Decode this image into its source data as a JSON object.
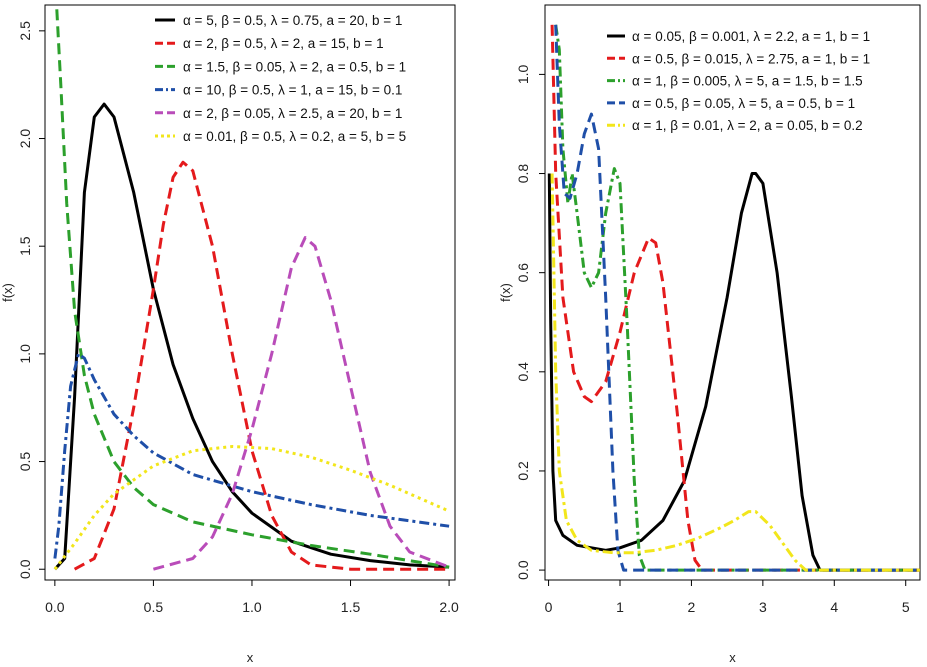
{
  "chart_data": [
    {
      "type": "line",
      "title": "",
      "xlabel": "x",
      "ylabel": "f(x)",
      "xlim": [
        -0.05,
        2.03
      ],
      "ylim": [
        -0.05,
        2.62
      ],
      "x_ticks": [
        0.0,
        0.5,
        1.0,
        1.5,
        2.0
      ],
      "x_tick_labels": [
        "0.0",
        "0.5",
        "1.0",
        "1.5",
        "2.0"
      ],
      "y_ticks": [
        0.0,
        0.5,
        1.0,
        1.5,
        2.0,
        2.5
      ],
      "y_tick_labels": [
        "0.0",
        "0.5",
        "1.0",
        "1.5",
        "2.0",
        "2.5"
      ],
      "legend_position": "top-right",
      "series": [
        {
          "name": "α = 5, β = 0.5, λ = 0.75, a = 20, b = 1",
          "color": "#000000",
          "dash": "solid",
          "points": [
            [
              0,
              0
            ],
            [
              0.05,
              0.05
            ],
            [
              0.1,
              0.8
            ],
            [
              0.15,
              1.75
            ],
            [
              0.2,
              2.1
            ],
            [
              0.25,
              2.16
            ],
            [
              0.3,
              2.1
            ],
            [
              0.4,
              1.75
            ],
            [
              0.5,
              1.3
            ],
            [
              0.6,
              0.95
            ],
            [
              0.7,
              0.7
            ],
            [
              0.8,
              0.5
            ],
            [
              0.9,
              0.36
            ],
            [
              1.0,
              0.26
            ],
            [
              1.2,
              0.13
            ],
            [
              1.4,
              0.07
            ],
            [
              1.6,
              0.04
            ],
            [
              1.8,
              0.02
            ],
            [
              2.0,
              0.01
            ]
          ]
        },
        {
          "name": "α = 2, β = 0.5, λ = 2, a = 15, b = 1",
          "color": "#e41a1c",
          "dash": "long-dash",
          "points": [
            [
              0.1,
              0
            ],
            [
              0.2,
              0.05
            ],
            [
              0.3,
              0.28
            ],
            [
              0.4,
              0.75
            ],
            [
              0.5,
              1.3
            ],
            [
              0.55,
              1.6
            ],
            [
              0.6,
              1.82
            ],
            [
              0.65,
              1.89
            ],
            [
              0.7,
              1.85
            ],
            [
              0.8,
              1.5
            ],
            [
              0.9,
              1.0
            ],
            [
              1.0,
              0.55
            ],
            [
              1.1,
              0.25
            ],
            [
              1.2,
              0.08
            ],
            [
              1.3,
              0.02
            ],
            [
              1.5,
              0
            ],
            [
              2.0,
              0
            ]
          ]
        },
        {
          "name": "α = 1.5, β = 0.05, λ = 2, a = 0.5, b = 1",
          "color": "#2ca02c",
          "dash": "long-dash",
          "points": [
            [
              0.01,
              2.6
            ],
            [
              0.03,
              2.25
            ],
            [
              0.06,
              1.7
            ],
            [
              0.1,
              1.2
            ],
            [
              0.15,
              0.9
            ],
            [
              0.2,
              0.72
            ],
            [
              0.3,
              0.5
            ],
            [
              0.4,
              0.38
            ],
            [
              0.5,
              0.3
            ],
            [
              0.7,
              0.22
            ],
            [
              1.0,
              0.16
            ],
            [
              1.3,
              0.11
            ],
            [
              1.6,
              0.07
            ],
            [
              2.0,
              0.01
            ]
          ]
        },
        {
          "name": "α = 10, β = 0.5, λ = 1, a = 15, b = 0.1",
          "color": "#1f4fa8",
          "dash": "dash-dot",
          "points": [
            [
              0,
              0.05
            ],
            [
              0.02,
              0.2
            ],
            [
              0.05,
              0.55
            ],
            [
              0.08,
              0.85
            ],
            [
              0.12,
              1.0
            ],
            [
              0.15,
              0.98
            ],
            [
              0.2,
              0.88
            ],
            [
              0.3,
              0.72
            ],
            [
              0.4,
              0.62
            ],
            [
              0.5,
              0.54
            ],
            [
              0.7,
              0.44
            ],
            [
              1.0,
              0.36
            ],
            [
              1.3,
              0.3
            ],
            [
              1.6,
              0.25
            ],
            [
              2.0,
              0.2
            ]
          ]
        },
        {
          "name": "α = 2, β = 0.05, λ = 2.5, a = 20, b = 1",
          "color": "#b94cb9",
          "dash": "long-dash",
          "points": [
            [
              0.5,
              0
            ],
            [
              0.7,
              0.05
            ],
            [
              0.8,
              0.15
            ],
            [
              0.9,
              0.35
            ],
            [
              1.0,
              0.65
            ],
            [
              1.1,
              1.0
            ],
            [
              1.2,
              1.4
            ],
            [
              1.27,
              1.54
            ],
            [
              1.32,
              1.5
            ],
            [
              1.4,
              1.25
            ],
            [
              1.5,
              0.85
            ],
            [
              1.6,
              0.45
            ],
            [
              1.7,
              0.2
            ],
            [
              1.8,
              0.08
            ],
            [
              2.0,
              0.01
            ]
          ]
        },
        {
          "name": "α = 0.01, β = 0.5, λ = 0.2, a = 5, b = 5",
          "color": "#f2e61b",
          "dash": "dotted",
          "points": [
            [
              0,
              0
            ],
            [
              0.1,
              0.12
            ],
            [
              0.2,
              0.25
            ],
            [
              0.3,
              0.35
            ],
            [
              0.5,
              0.48
            ],
            [
              0.7,
              0.55
            ],
            [
              0.9,
              0.57
            ],
            [
              1.1,
              0.56
            ],
            [
              1.3,
              0.52
            ],
            [
              1.5,
              0.46
            ],
            [
              1.7,
              0.39
            ],
            [
              1.9,
              0.31
            ],
            [
              2.0,
              0.27
            ]
          ]
        }
      ]
    },
    {
      "type": "line",
      "title": "",
      "xlabel": "x",
      "ylabel": "f(x)",
      "xlim": [
        -0.05,
        5.2
      ],
      "ylim": [
        -0.02,
        1.14
      ],
      "x_ticks": [
        0,
        1,
        2,
        3,
        4,
        5
      ],
      "x_tick_labels": [
        "0",
        "1",
        "2",
        "3",
        "4",
        "5"
      ],
      "y_ticks": [
        0.0,
        0.2,
        0.4,
        0.6,
        0.8,
        1.0
      ],
      "y_tick_labels": [
        "0.0",
        "0.2",
        "0.4",
        "0.6",
        "0.8",
        "1.0"
      ],
      "legend_position": "top-right",
      "series": [
        {
          "name": "α = 0.05, β = 0.001, λ = 2.2, a = 1, b = 1",
          "color": "#000000",
          "dash": "solid",
          "points": [
            [
              0.01,
              0.8
            ],
            [
              0.03,
              0.5
            ],
            [
              0.06,
              0.2
            ],
            [
              0.1,
              0.1
            ],
            [
              0.2,
              0.07
            ],
            [
              0.4,
              0.05
            ],
            [
              0.6,
              0.045
            ],
            [
              0.8,
              0.04
            ],
            [
              1.0,
              0.045
            ],
            [
              1.3,
              0.06
            ],
            [
              1.6,
              0.1
            ],
            [
              1.9,
              0.18
            ],
            [
              2.2,
              0.33
            ],
            [
              2.5,
              0.55
            ],
            [
              2.7,
              0.72
            ],
            [
              2.85,
              0.8
            ],
            [
              2.9,
              0.8
            ],
            [
              3.0,
              0.78
            ],
            [
              3.2,
              0.6
            ],
            [
              3.4,
              0.35
            ],
            [
              3.55,
              0.15
            ],
            [
              3.7,
              0.03
            ],
            [
              3.8,
              0
            ],
            [
              5.2,
              0
            ]
          ]
        },
        {
          "name": "α = 0.5, β = 0.015, λ = 2.75, a = 1, b = 1",
          "color": "#e41a1c",
          "dash": "long-dash",
          "points": [
            [
              0.05,
              1.1
            ],
            [
              0.1,
              0.8
            ],
            [
              0.2,
              0.55
            ],
            [
              0.35,
              0.4
            ],
            [
              0.5,
              0.35
            ],
            [
              0.6,
              0.34
            ],
            [
              0.8,
              0.38
            ],
            [
              1.0,
              0.48
            ],
            [
              1.2,
              0.6
            ],
            [
              1.4,
              0.67
            ],
            [
              1.5,
              0.66
            ],
            [
              1.6,
              0.58
            ],
            [
              1.8,
              0.32
            ],
            [
              1.95,
              0.1
            ],
            [
              2.05,
              0.02
            ],
            [
              2.15,
              0
            ],
            [
              5.2,
              0
            ]
          ]
        },
        {
          "name": "α = 1, β = 0.005, λ = 5, a = 1.5, b = 1.5",
          "color": "#2ca02c",
          "dash": "dash-dot",
          "points": [
            [
              0.1,
              1.1
            ],
            [
              0.15,
              1.05
            ],
            [
              0.2,
              0.85
            ],
            [
              0.27,
              0.74
            ],
            [
              0.33,
              0.8
            ],
            [
              0.4,
              0.72
            ],
            [
              0.5,
              0.6
            ],
            [
              0.6,
              0.57
            ],
            [
              0.7,
              0.6
            ],
            [
              0.8,
              0.72
            ],
            [
              0.92,
              0.81
            ],
            [
              1.0,
              0.78
            ],
            [
              1.1,
              0.5
            ],
            [
              1.2,
              0.18
            ],
            [
              1.27,
              0.03
            ],
            [
              1.35,
              0
            ],
            [
              5.2,
              0
            ]
          ]
        },
        {
          "name": "α = 0.5, β = 0.05, λ = 5, a = 0.5, b = 1",
          "color": "#1f4fa8",
          "dash": "long-dash",
          "points": [
            [
              0.1,
              1.1
            ],
            [
              0.15,
              0.9
            ],
            [
              0.22,
              0.76
            ],
            [
              0.3,
              0.75
            ],
            [
              0.4,
              0.8
            ],
            [
              0.5,
              0.88
            ],
            [
              0.6,
              0.92
            ],
            [
              0.7,
              0.85
            ],
            [
              0.8,
              0.55
            ],
            [
              0.9,
              0.2
            ],
            [
              0.97,
              0.04
            ],
            [
              1.05,
              0
            ],
            [
              5.2,
              0
            ]
          ]
        },
        {
          "name": "α = 1, β = 0.01, λ = 2, a = 0.05, b = 0.2",
          "color": "#f2e61b",
          "dash": "dash-dot",
          "points": [
            [
              0.05,
              0.8
            ],
            [
              0.1,
              0.4
            ],
            [
              0.15,
              0.2
            ],
            [
              0.25,
              0.1
            ],
            [
              0.4,
              0.06
            ],
            [
              0.6,
              0.04
            ],
            [
              0.9,
              0.035
            ],
            [
              1.2,
              0.035
            ],
            [
              1.5,
              0.04
            ],
            [
              1.8,
              0.05
            ],
            [
              2.1,
              0.065
            ],
            [
              2.4,
              0.085
            ],
            [
              2.6,
              0.1
            ],
            [
              2.8,
              0.118
            ],
            [
              2.9,
              0.118
            ],
            [
              3.1,
              0.09
            ],
            [
              3.3,
              0.05
            ],
            [
              3.45,
              0.02
            ],
            [
              3.6,
              0
            ],
            [
              5.2,
              0
            ]
          ]
        }
      ]
    }
  ]
}
